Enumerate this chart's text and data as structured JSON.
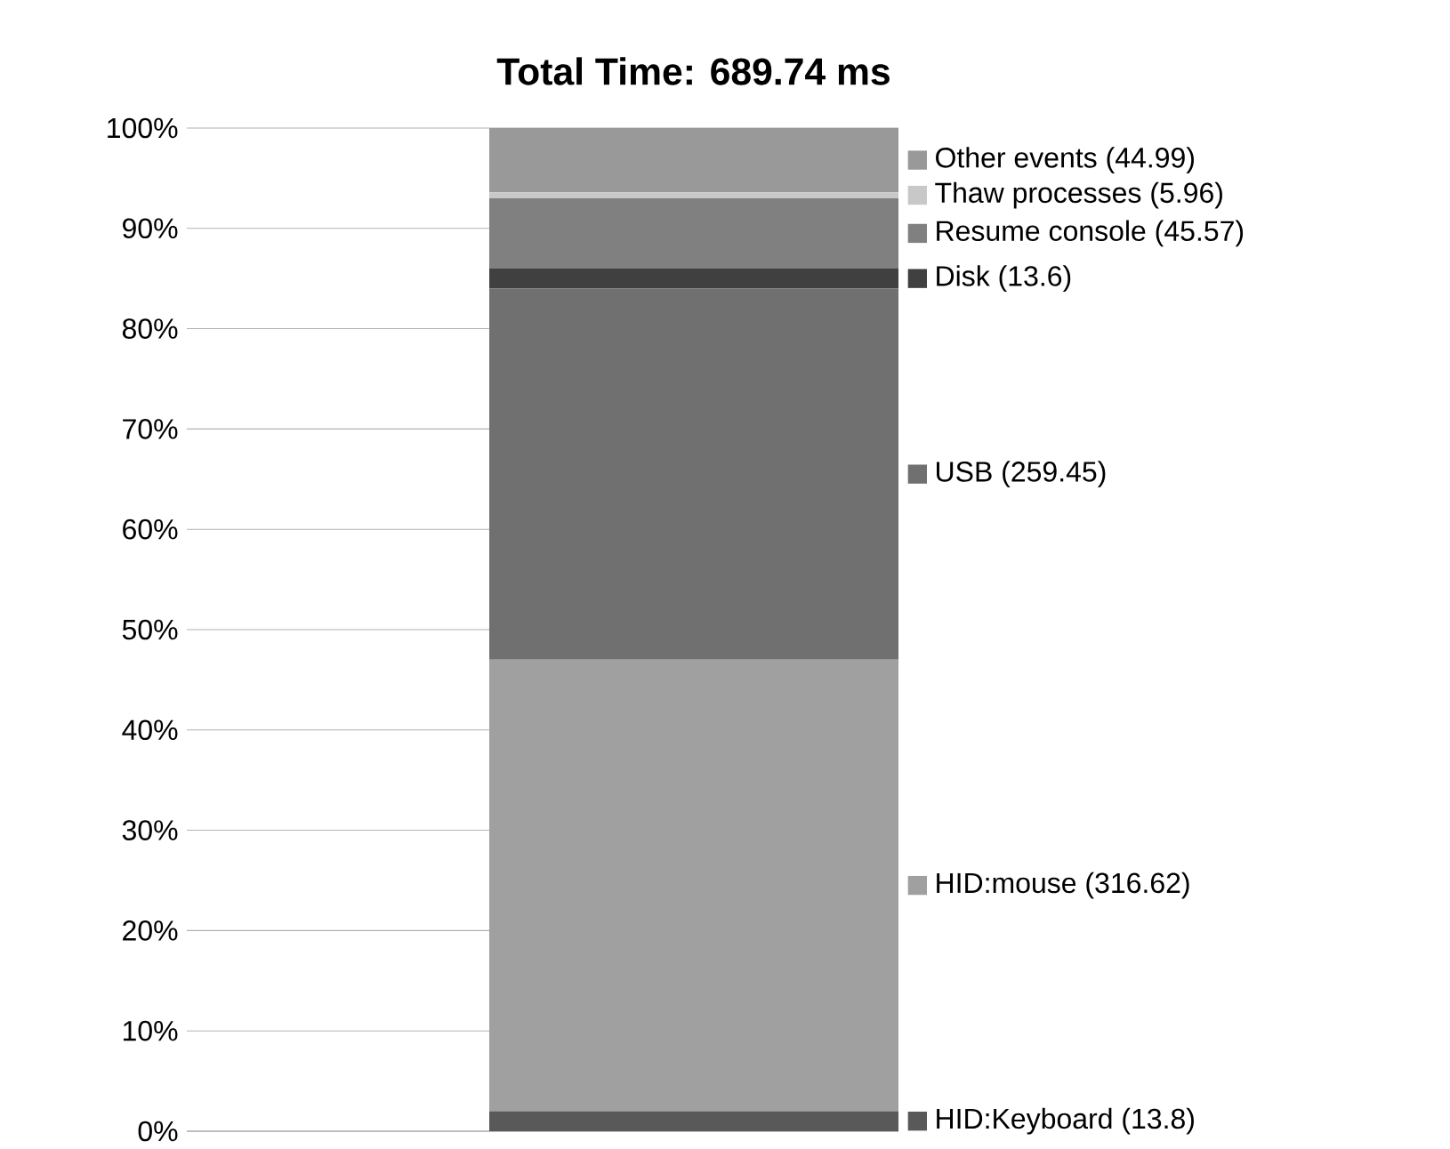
{
  "chart_data": {
    "type": "bar",
    "stacked": true,
    "title": "Total Time: 689.74 ms",
    "categories": [
      null
    ],
    "series": [
      {
        "name": "HID:Keyboard (13.8)",
        "color": "#595959",
        "values": [
          2
        ]
      },
      {
        "name": "HID:mouse (316.62)",
        "color": "#a0a0a0",
        "values": [
          45
        ]
      },
      {
        "name": "USB (259.45)",
        "color": "#707070",
        "values": [
          37
        ]
      },
      {
        "name": "Disk (13.6)",
        "color": "#404040",
        "values": [
          2
        ]
      },
      {
        "name": "Resume console (45.57)",
        "color": "#808080",
        "values": [
          7
        ]
      },
      {
        "name": "Thaw processes (5.96)",
        "color": "#c8c8c8",
        "values": [
          0.6
        ]
      },
      {
        "name": "Other events (44.99)",
        "color": "#999999",
        "values": [
          6.4
        ]
      }
    ],
    "ylim": [
      0,
      100
    ],
    "yticks": [
      {
        "value": 0,
        "label": "0%"
      },
      {
        "value": 10,
        "label": "10%"
      },
      {
        "value": 20,
        "label": "20%"
      },
      {
        "value": 30,
        "label": "30%"
      },
      {
        "value": 40,
        "label": "40%"
      },
      {
        "value": 50,
        "label": "50%"
      },
      {
        "value": 60,
        "label": "60%"
      },
      {
        "value": 70,
        "label": "70%"
      },
      {
        "value": 80,
        "label": "80%"
      },
      {
        "value": 90,
        "label": "90%"
      },
      {
        "value": 100,
        "label": "100%"
      }
    ],
    "grid": "y",
    "legend": "right"
  }
}
